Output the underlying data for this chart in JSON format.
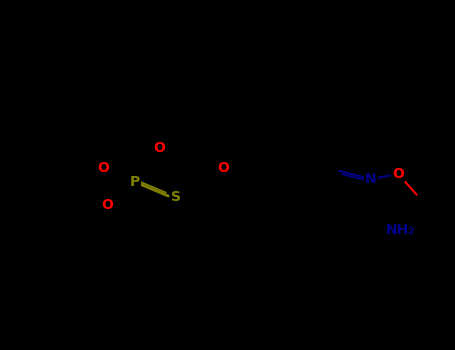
{
  "bg": "#000000",
  "lw": 1.5,
  "fs": 10,
  "colors": {
    "C": "#000000",
    "O": "#ff0000",
    "P": "#808000",
    "S": "#808000",
    "N": "#00008b"
  },
  "figsize": [
    4.55,
    3.5
  ],
  "dpi": 100
}
